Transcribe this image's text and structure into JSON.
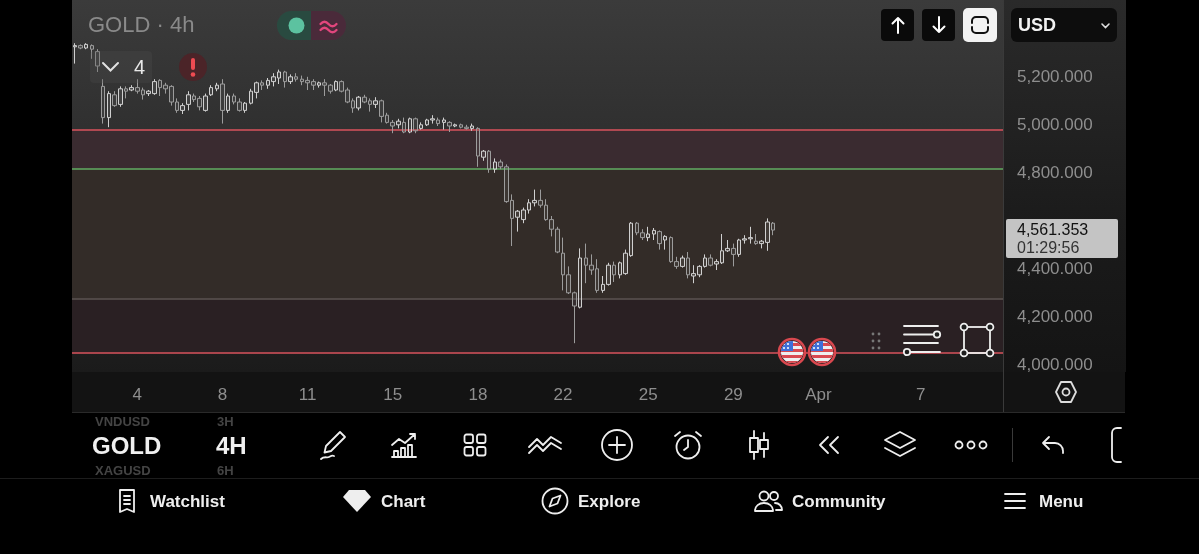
{
  "chart_data": {
    "type": "candlestick",
    "title": "GOLD · 4h",
    "ylabel": "USD",
    "categories": [
      null,
      null,
      null,
      null,
      null,
      null,
      null,
      null,
      null,
      null,
      null,
      "4",
      null,
      null,
      null,
      null,
      null,
      null,
      null,
      null,
      null,
      null,
      null,
      null,
      null,
      null,
      "8",
      null,
      null,
      null,
      null,
      null,
      null,
      null,
      null,
      null,
      null,
      null,
      null,
      null,
      null,
      "11",
      null,
      null,
      null,
      null,
      null,
      null,
      null,
      null,
      null,
      null,
      null,
      null,
      null,
      null,
      "15",
      null,
      null,
      null,
      null,
      null,
      null,
      null,
      null,
      null,
      null,
      null,
      null,
      null,
      null,
      "18",
      null,
      null,
      null,
      null,
      null,
      null,
      null,
      null,
      null,
      null,
      null,
      null,
      null,
      null,
      "22",
      null,
      null,
      null,
      null,
      null,
      null,
      null,
      null,
      null,
      null,
      null,
      null,
      null,
      null,
      "25",
      null,
      null,
      null,
      null,
      null,
      null,
      null,
      null,
      null,
      null,
      null,
      null,
      null,
      null,
      "29",
      null,
      null,
      null,
      null,
      null,
      null,
      null,
      null,
      null,
      null,
      null,
      null,
      null,
      null,
      "Apr",
      null,
      null,
      null,
      null,
      null,
      null,
      null,
      null,
      null,
      null,
      null,
      null,
      null,
      null,
      null,
      null,
      null,
      "7",
      null,
      null,
      null,
      null,
      null,
      null,
      null,
      null,
      null,
      null,
      null,
      null,
      null,
      null
    ],
    "ohlc": [
      [
        5325,
        5340,
        5255,
        5330
      ],
      [
        5330,
        5335,
        5315,
        5320
      ],
      [
        5320,
        5340,
        5315,
        5335
      ],
      [
        5330,
        5335,
        5275,
        5315
      ],
      [
        5305,
        5315,
        5220,
        5245
      ],
      [
        5160,
        5190,
        5005,
        5030
      ],
      [
        5030,
        5140,
        4990,
        5130
      ],
      [
        5125,
        5140,
        5075,
        5080
      ],
      [
        5085,
        5160,
        5075,
        5150
      ],
      [
        5150,
        5160,
        5110,
        5140
      ],
      [
        5145,
        5165,
        5140,
        5155
      ],
      [
        5155,
        5190,
        5130,
        5140
      ],
      [
        5145,
        5155,
        5105,
        5125
      ],
      [
        5130,
        5145,
        5120,
        5140
      ],
      [
        5130,
        5190,
        5125,
        5180
      ],
      [
        5185,
        5190,
        5120,
        5155
      ],
      [
        5165,
        5175,
        5130,
        5150
      ],
      [
        5160,
        5165,
        5080,
        5095
      ],
      [
        5095,
        5110,
        5050,
        5060
      ],
      [
        5060,
        5090,
        5045,
        5080
      ],
      [
        5085,
        5140,
        5060,
        5125
      ],
      [
        5120,
        5130,
        5095,
        5105
      ],
      [
        5110,
        5120,
        5060,
        5075
      ],
      [
        5060,
        5130,
        5055,
        5120
      ],
      [
        5125,
        5165,
        5120,
        5155
      ],
      [
        5150,
        5175,
        5140,
        5165
      ],
      [
        5170,
        5190,
        5005,
        5060
      ],
      [
        5060,
        5130,
        5050,
        5120
      ],
      [
        5120,
        5130,
        5085,
        5095
      ],
      [
        5095,
        5110,
        5055,
        5060
      ],
      [
        5060,
        5095,
        5050,
        5090
      ],
      [
        5090,
        5150,
        5085,
        5140
      ],
      [
        5135,
        5180,
        5110,
        5175
      ],
      [
        5175,
        5185,
        5145,
        5165
      ],
      [
        5165,
        5195,
        5150,
        5185
      ],
      [
        5180,
        5215,
        5160,
        5200
      ],
      [
        5195,
        5230,
        5170,
        5220
      ],
      [
        5220,
        5225,
        5155,
        5180
      ],
      [
        5180,
        5210,
        5170,
        5200
      ],
      [
        5200,
        5215,
        5180,
        5190
      ],
      [
        5190,
        5205,
        5165,
        5180
      ],
      [
        5185,
        5200,
        5145,
        5175
      ],
      [
        5180,
        5190,
        5145,
        5165
      ],
      [
        5165,
        5180,
        5155,
        5175
      ],
      [
        5175,
        5190,
        5120,
        5165
      ],
      [
        5165,
        5170,
        5130,
        5140
      ],
      [
        5145,
        5185,
        5140,
        5180
      ],
      [
        5180,
        5185,
        5135,
        5140
      ],
      [
        5145,
        5155,
        5090,
        5095
      ],
      [
        5100,
        5110,
        5050,
        5070
      ],
      [
        5070,
        5120,
        5060,
        5115
      ],
      [
        5115,
        5125,
        5090,
        5095
      ],
      [
        5100,
        5110,
        5055,
        5085
      ],
      [
        5085,
        5115,
        5070,
        5100
      ],
      [
        5100,
        5105,
        5010,
        5035
      ],
      [
        5040,
        5050,
        5005,
        5010
      ],
      [
        5010,
        5020,
        4965,
        4995
      ],
      [
        5000,
        5025,
        4985,
        5015
      ],
      [
        5010,
        5030,
        4965,
        4970
      ],
      [
        4970,
        5030,
        4965,
        5025
      ],
      [
        5025,
        5030,
        4965,
        4975
      ],
      [
        4985,
        5010,
        4980,
        5000
      ],
      [
        5000,
        5025,
        4995,
        5020
      ],
      [
        5020,
        5040,
        5005,
        5025
      ],
      [
        5020,
        5030,
        4995,
        5005
      ],
      [
        5010,
        5030,
        4980,
        5020
      ],
      [
        5010,
        5015,
        4970,
        4995
      ],
      [
        4995,
        5005,
        4990,
        5000
      ],
      [
        5000,
        5005,
        4985,
        4990
      ],
      [
        4990,
        5000,
        4980,
        4985
      ],
      [
        4985,
        5005,
        4975,
        4995
      ],
      [
        4985,
        4990,
        4825,
        4870
      ],
      [
        4865,
        4895,
        4850,
        4890
      ],
      [
        4890,
        4895,
        4800,
        4815
      ],
      [
        4815,
        4860,
        4800,
        4845
      ],
      [
        4845,
        4855,
        4815,
        4825
      ],
      [
        4825,
        4835,
        4675,
        4680
      ],
      [
        4685,
        4710,
        4495,
        4610
      ],
      [
        4615,
        4645,
        4555,
        4640
      ],
      [
        4605,
        4655,
        4590,
        4645
      ],
      [
        4645,
        4690,
        4630,
        4675
      ],
      [
        4675,
        4730,
        4660,
        4685
      ],
      [
        4685,
        4730,
        4655,
        4665
      ],
      [
        4665,
        4690,
        4600,
        4605
      ],
      [
        4605,
        4620,
        4535,
        4565
      ],
      [
        4565,
        4575,
        4465,
        4470
      ],
      [
        4465,
        4530,
        4310,
        4375
      ],
      [
        4375,
        4410,
        4295,
        4300
      ],
      [
        4300,
        4305,
        4090,
        4245
      ],
      [
        4240,
        4485,
        4235,
        4445
      ],
      [
        4445,
        4505,
        4340,
        4415
      ],
      [
        4415,
        4460,
        4375,
        4395
      ],
      [
        4400,
        4440,
        4300,
        4310
      ],
      [
        4310,
        4370,
        4300,
        4335
      ],
      [
        4335,
        4425,
        4330,
        4415
      ],
      [
        4415,
        4430,
        4345,
        4375
      ],
      [
        4375,
        4430,
        4360,
        4425
      ],
      [
        4380,
        4480,
        4375,
        4465
      ],
      [
        4455,
        4595,
        4450,
        4590
      ],
      [
        4590,
        4595,
        4540,
        4550
      ],
      [
        4550,
        4565,
        4520,
        4530
      ],
      [
        4530,
        4575,
        4515,
        4545
      ],
      [
        4545,
        4570,
        4520,
        4560
      ],
      [
        4555,
        4560,
        4480,
        4505
      ],
      [
        4520,
        4540,
        4480,
        4535
      ],
      [
        4530,
        4535,
        4425,
        4430
      ],
      [
        4430,
        4450,
        4400,
        4410
      ],
      [
        4410,
        4455,
        4405,
        4445
      ],
      [
        4445,
        4470,
        4360,
        4375
      ],
      [
        4370,
        4415,
        4340,
        4380
      ],
      [
        4375,
        4415,
        4365,
        4410
      ],
      [
        4410,
        4460,
        4405,
        4445
      ],
      [
        4445,
        4460,
        4410,
        4415
      ],
      [
        4420,
        4440,
        4395,
        4430
      ],
      [
        4425,
        4545,
        4420,
        4475
      ],
      [
        4475,
        4520,
        4470,
        4485
      ],
      [
        4485,
        4505,
        4410,
        4460
      ],
      [
        4460,
        4525,
        4450,
        4520
      ],
      [
        4520,
        4540,
        4505,
        4525
      ],
      [
        4525,
        4575,
        4505,
        4530
      ],
      [
        4515,
        4545,
        4500,
        4505
      ],
      [
        4505,
        4520,
        4485,
        4515
      ],
      [
        4510,
        4610,
        4475,
        4595
      ],
      [
        4590,
        4595,
        4540,
        4561.353
      ],
      null,
      null,
      null,
      null,
      null,
      null,
      null,
      null,
      null,
      null,
      null,
      null,
      null,
      null,
      null,
      null,
      null,
      null,
      null,
      null,
      null,
      null,
      null,
      null,
      null,
      null,
      null,
      null,
      null,
      null,
      null,
      null,
      null,
      null,
      null,
      null,
      null,
      null,
      null,
      null
    ],
    "colors": [
      "#d0d0d0",
      "#9c9c9c",
      "#d0d0d0",
      "#9c9c9c",
      "#9c9c9c",
      "#9c9c9c",
      "#d0d0d0",
      "#9c9c9c",
      "#d0d0d0",
      "#9c9c9c",
      "#d0d0d0",
      "#9c9c9c",
      "#9c9c9c",
      "#d0d0d0",
      "#d0d0d0",
      "#9c9c9c",
      "#9c9c9c",
      "#9c9c9c",
      "#9c9c9c",
      "#d0d0d0",
      "#d0d0d0",
      "#9c9c9c",
      "#9c9c9c",
      "#d0d0d0",
      "#d0d0d0",
      "#d0d0d0",
      "#9c9c9c",
      "#d0d0d0",
      "#9c9c9c",
      "#9c9c9c",
      "#d0d0d0",
      "#d0d0d0",
      "#d0d0d0",
      "#9c9c9c",
      "#d0d0d0",
      "#d0d0d0",
      "#d0d0d0",
      "#9c9c9c",
      "#d0d0d0",
      "#9c9c9c",
      "#9c9c9c",
      "#9c9c9c",
      "#9c9c9c",
      "#d0d0d0",
      "#9c9c9c",
      "#9c9c9c",
      "#d0d0d0",
      "#9c9c9c",
      "#9c9c9c",
      "#9c9c9c",
      "#d0d0d0",
      "#9c9c9c",
      "#9c9c9c",
      "#d0d0d0",
      "#9c9c9c",
      "#9c9c9c",
      "#9c9c9c",
      "#d0d0d0",
      "#9c9c9c",
      "#d0d0d0",
      "#9c9c9c",
      "#d0d0d0",
      "#d0d0d0",
      "#d0d0d0",
      "#9c9c9c",
      "#d0d0d0",
      "#9c9c9c",
      "#d0d0d0",
      "#9c9c9c",
      "#9c9c9c",
      "#d0d0d0",
      "#9c9c9c",
      "#d0d0d0",
      "#9c9c9c",
      "#d0d0d0",
      "#9c9c9c",
      "#9c9c9c",
      "#9c9c9c",
      "#d0d0d0",
      "#d0d0d0",
      "#d0d0d0",
      "#d0d0d0",
      "#9c9c9c",
      "#9c9c9c",
      "#9c9c9c",
      "#9c9c9c",
      "#9c9c9c",
      "#9c9c9c",
      "#9c9c9c",
      "#d0d0d0",
      "#9c9c9c",
      "#9c9c9c",
      "#9c9c9c",
      "#d0d0d0",
      "#d0d0d0",
      "#9c9c9c",
      "#d0d0d0",
      "#d0d0d0",
      "#d0d0d0",
      "#9c9c9c",
      "#9c9c9c",
      "#d0d0d0",
      "#d0d0d0",
      "#9c9c9c",
      "#d0d0d0",
      "#9c9c9c",
      "#9c9c9c",
      "#d0d0d0",
      "#9c9c9c",
      "#d0d0d0",
      "#d0d0d0",
      "#d0d0d0",
      "#9c9c9c",
      "#d0d0d0",
      "#d0d0d0",
      "#d0d0d0",
      "#9c9c9c",
      "#d0d0d0",
      "#d0d0d0",
      "#d0d0d0",
      "#9c9c9c",
      "#d0d0d0",
      "#d0d0d0",
      "#9c9c9c",
      null,
      null,
      null,
      null,
      null,
      null,
      null,
      null,
      null,
      null,
      null,
      null,
      null,
      null,
      null,
      null,
      null,
      null,
      null,
      null,
      null,
      null,
      null,
      null,
      null,
      null,
      null,
      null,
      null,
      null,
      null,
      null,
      null,
      null,
      null,
      null,
      null,
      null,
      null,
      null
    ],
    "ylim": [
      3970,
      5520
    ],
    "yticks": [
      {
        "value": 4000,
        "label": "4,000.000"
      },
      {
        "value": 4200,
        "label": "4,200.000"
      },
      {
        "value": 4400,
        "label": "4,400.000"
      },
      {
        "value": 4800,
        "label": "4,800.000"
      },
      {
        "value": 5000,
        "label": "5,000.000"
      },
      {
        "value": 5200,
        "label": "5,200.000"
      }
    ],
    "ref_lines": [
      {
        "axis": "y",
        "value": 4980,
        "color": "#d9535c"
      },
      {
        "axis": "y",
        "value": 4815,
        "color": "#62ad62"
      },
      {
        "axis": "y",
        "value": 4275,
        "color": "#5c5452"
      },
      {
        "axis": "y",
        "value": 4050,
        "color": "#d9535c"
      }
    ],
    "bands": [
      {
        "axis": "y",
        "from": 4815,
        "to": 4980,
        "color": "#3a2b30"
      },
      {
        "axis": "y",
        "from": 4275,
        "to": 4815,
        "color": "#332c28"
      },
      {
        "axis": "y",
        "from": 4050,
        "to": 4275,
        "color": "#2a2023"
      }
    ],
    "annotations": [
      "4",
      "4,561.353",
      "01:29:56",
      "GOLD",
      "4H",
      "VNDUSD",
      "3H",
      "XAGUSD",
      "6H",
      "Watchlist",
      "Chart",
      "Explore",
      "Community",
      "Menu"
    ]
  }
}
